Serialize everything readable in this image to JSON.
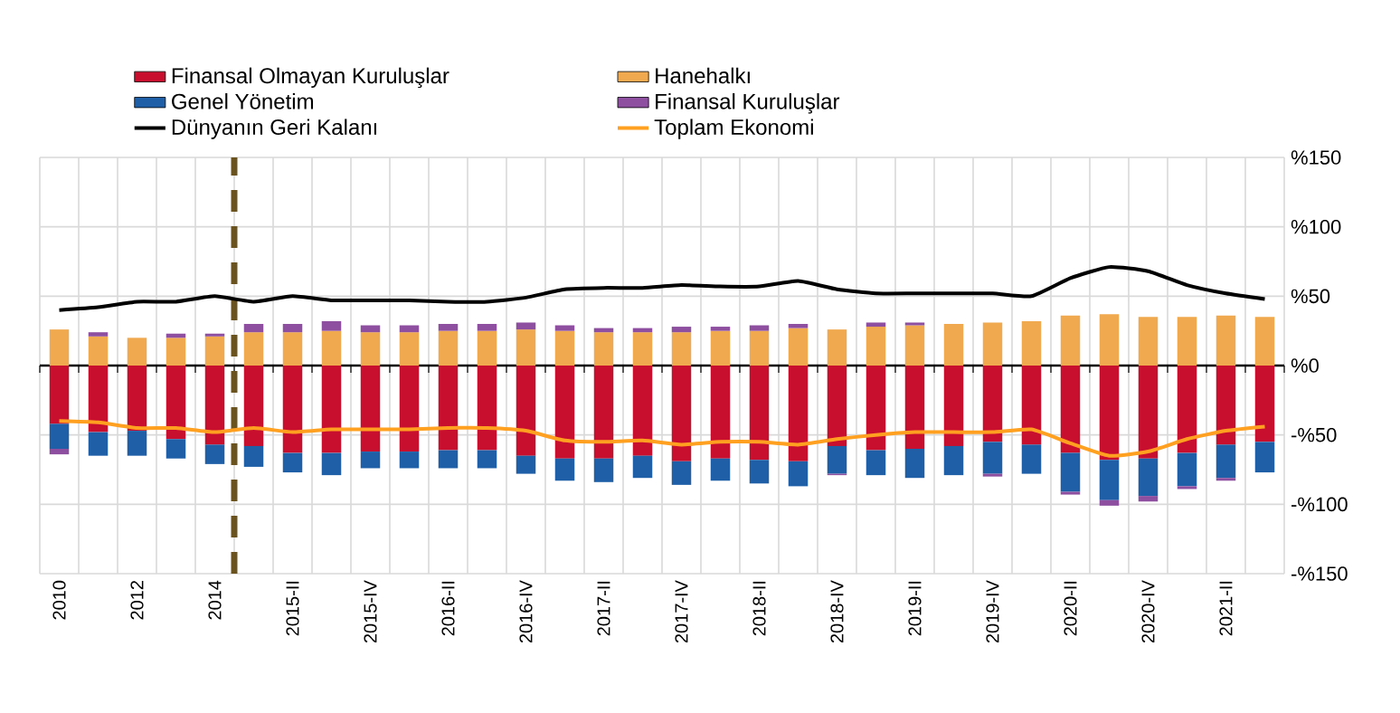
{
  "chart_data": {
    "type": "bar",
    "stacked": true,
    "grid": true,
    "legend": "top",
    "categories": [
      "2010",
      null,
      "2012",
      null,
      "2014",
      null,
      "2015-II",
      null,
      "2015-IV",
      null,
      "2016-II",
      null,
      "2016-IV",
      null,
      "2017-II",
      null,
      "2017-IV",
      null,
      "2018-II",
      null,
      "2018-IV",
      null,
      "2019-II",
      null,
      "2019-IV",
      null,
      "2020-II",
      null,
      "2020-IV",
      null,
      "2021-II",
      null
    ],
    "ylim": [
      -150,
      150
    ],
    "yticks": [
      {
        "value": -150,
        "label": "-%150"
      },
      {
        "value": -100,
        "label": "-%100"
      },
      {
        "value": -50,
        "label": "-%50"
      },
      {
        "value": 0,
        "label": "%0"
      },
      {
        "value": 50,
        "label": "%50"
      },
      {
        "value": 100,
        "label": "%100"
      },
      {
        "value": 150,
        "label": "%150"
      }
    ],
    "series": [
      {
        "name": "Finansal Olmayan Kuruluşlar",
        "color": "#c8102e",
        "values": [
          -42,
          -48,
          -47,
          -53,
          -57,
          -58,
          -63,
          -63,
          -62,
          -62,
          -61,
          -61,
          -65,
          -67,
          -67,
          -65,
          -69,
          -67,
          -68,
          -69,
          -58,
          -61,
          -60,
          -58,
          -55,
          -57,
          -63,
          -68,
          -67,
          -63,
          -57,
          -55
        ]
      },
      {
        "name": "Hanehalkı",
        "color": "#f0a94f",
        "values": [
          26,
          21,
          20,
          20,
          21,
          24,
          24,
          25,
          24,
          24,
          25,
          25,
          26,
          25,
          24,
          24,
          24,
          25,
          25,
          27,
          26,
          28,
          29,
          30,
          31,
          32,
          36,
          37,
          35,
          35,
          36,
          35
        ]
      },
      {
        "name": "Genel Yönetim",
        "color": "#1f5fa8",
        "values": [
          -18,
          -17,
          -18,
          -14,
          -14,
          -15,
          -14,
          -16,
          -12,
          -12,
          -13,
          -13,
          -13,
          -16,
          -17,
          -16,
          -17,
          -16,
          -17,
          -18,
          -20,
          -18,
          -21,
          -21,
          -23,
          -21,
          -28,
          -29,
          -27,
          -24,
          -24,
          -22
        ]
      },
      {
        "name": "Finansal Kuruluşlar",
        "color": "#8e4fa0",
        "values": [
          -4,
          3,
          0,
          3,
          2,
          6,
          6,
          7,
          5,
          5,
          5,
          5,
          5,
          4,
          3,
          3,
          4,
          3,
          4,
          3,
          -1,
          3,
          2,
          0,
          -2,
          0,
          -2,
          -4,
          -4,
          -2,
          -2,
          0
        ]
      },
      {
        "name": "Dünyanın Geri Kalanı",
        "type": "line",
        "color": "#000000",
        "values": [
          40,
          42,
          46,
          46,
          50,
          46,
          50,
          47,
          47,
          47,
          46,
          46,
          49,
          55,
          56,
          56,
          58,
          57,
          57,
          61,
          55,
          52,
          52,
          52,
          52,
          50,
          63,
          71,
          68,
          58,
          52,
          48
        ]
      },
      {
        "name": "Toplam Ekonomi",
        "type": "line",
        "color": "#ffa020",
        "values": [
          -40,
          -41,
          -45,
          -45,
          -48,
          -45,
          -48,
          -46,
          -46,
          -46,
          -45,
          -45,
          -47,
          -54,
          -55,
          -54,
          -57,
          -55,
          -55,
          -57,
          -53,
          -50,
          -48,
          -48,
          -48,
          -46,
          -56,
          -65,
          -62,
          -53,
          -47,
          -44
        ]
      }
    ]
  }
}
